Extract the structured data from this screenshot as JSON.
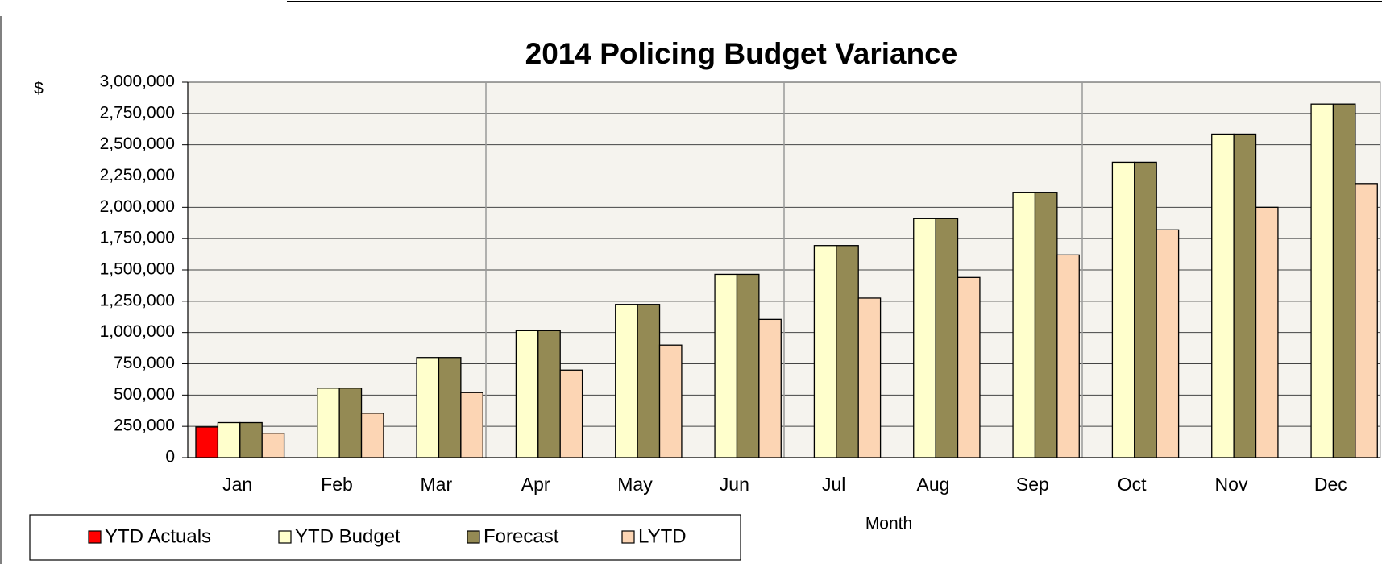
{
  "chart_data": {
    "type": "bar",
    "title": "2014 Policing Budget Variance",
    "y_label": "$",
    "x_label": "Month",
    "categories": [
      "Jan",
      "Feb",
      "Mar",
      "Apr",
      "May",
      "Jun",
      "Jul",
      "Aug",
      "Sep",
      "Oct",
      "Nov",
      "Dec"
    ],
    "series": [
      {
        "name": "YTD Actuals",
        "color": "#ff0000",
        "values": [
          245000,
          null,
          null,
          null,
          null,
          null,
          null,
          null,
          null,
          null,
          null,
          null
        ]
      },
      {
        "name": "YTD Budget",
        "color": "#ffffcc",
        "values": [
          280000,
          555000,
          800000,
          1015000,
          1225000,
          1465000,
          1695000,
          1910000,
          2120000,
          2360000,
          2585000,
          2825000
        ]
      },
      {
        "name": "Forecast",
        "color": "#948a54",
        "values": [
          280000,
          555000,
          800000,
          1015000,
          1225000,
          1465000,
          1695000,
          1910000,
          2120000,
          2360000,
          2585000,
          2825000
        ]
      },
      {
        "name": "LYTD",
        "color": "#fcd5b4",
        "values": [
          195000,
          355000,
          520000,
          700000,
          900000,
          1105000,
          1275000,
          1440000,
          1620000,
          1820000,
          2000000,
          2190000
        ]
      }
    ],
    "ylim": [
      0,
      3000000
    ],
    "yticks": [
      0,
      {
        "value": 250000,
        "label": "250,000"
      },
      {
        "value": 500000,
        "label": "500,000"
      },
      {
        "value": 750000,
        "label": "750,000"
      },
      {
        "value": 1000000,
        "label": "1,000,000"
      },
      {
        "value": 1250000,
        "label": "1,250,000"
      },
      {
        "value": 1500000,
        "label": "1,500,000"
      },
      {
        "value": 1750000,
        "label": "1,750,000"
      },
      {
        "value": 2000000,
        "label": "2,000,000"
      },
      {
        "value": 2250000,
        "label": "2,250,000"
      },
      {
        "value": 2500000,
        "label": "2,500,000"
      },
      {
        "value": 2750000,
        "label": "2,750,000"
      },
      {
        "value": 3000000,
        "label": "3,000,000"
      }
    ],
    "grid": true,
    "legend": "bottom-left"
  }
}
